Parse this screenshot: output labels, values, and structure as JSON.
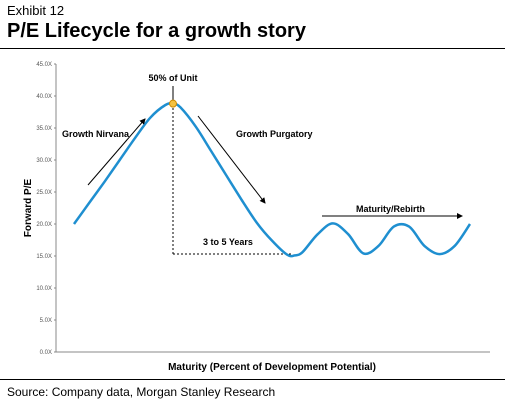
{
  "header": {
    "exhibit": "Exhibit 12",
    "title": "P/E Lifecycle for a growth story"
  },
  "footer": {
    "source": "Source: Company data, Morgan Stanley Research"
  },
  "chart_data": {
    "type": "line",
    "xlabel": "Maturity (Percent of Development Potential)",
    "ylabel": "Forward P/E",
    "ylim": [
      0,
      45
    ],
    "yticks": [
      "0.0X",
      "5.0X",
      "10.0X",
      "15.0X",
      "20.0X",
      "25.0X",
      "30.0X",
      "35.0X",
      "40.0X",
      "45.0X"
    ],
    "grid": false,
    "line_color": "#1f8fd0",
    "series": [
      {
        "points": [
          [
            0,
            20
          ],
          [
            1,
            23.3
          ],
          [
            2,
            26.6
          ],
          [
            3,
            30
          ],
          [
            4,
            33.4
          ],
          [
            5,
            36.6
          ],
          [
            6,
            38.6
          ],
          [
            6.5,
            38.8
          ],
          [
            7,
            38.2
          ],
          [
            8,
            35.2
          ],
          [
            9,
            31.4
          ],
          [
            10,
            27.6
          ],
          [
            11,
            23.8
          ],
          [
            12,
            20.2
          ],
          [
            13,
            17.4
          ],
          [
            14,
            15.2
          ],
          [
            14.5,
            15.1
          ],
          [
            15,
            15.6
          ],
          [
            16,
            18.4
          ],
          [
            17,
            20.1
          ],
          [
            18,
            18.4
          ],
          [
            19,
            15.4
          ],
          [
            20,
            16.6
          ],
          [
            21,
            19.6
          ],
          [
            22,
            19.6
          ],
          [
            23,
            16.6
          ],
          [
            24,
            15.3
          ],
          [
            25,
            16.6
          ],
          [
            26,
            20.0
          ]
        ]
      }
    ],
    "annotations": {
      "peak": "50% of Unit",
      "rise": "Growth Nirvana",
      "fall": "Growth Purgatory",
      "gap": "3 to 5 Years",
      "end": "Maturity/Rebirth"
    }
  }
}
